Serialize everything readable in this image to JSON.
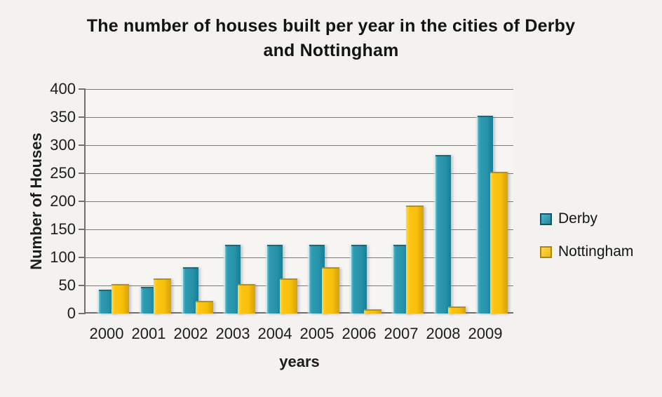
{
  "title": "The number of houses built per year in the cities of Derby and Nottingham",
  "chart_data": {
    "type": "bar",
    "title": "The number of houses built per year in the cities of Derby and Nottingham",
    "categories": [
      "2000",
      "2001",
      "2002",
      "2003",
      "2004",
      "2005",
      "2006",
      "2007",
      "2008",
      "2009"
    ],
    "series": [
      {
        "name": "Derby",
        "color": "#2592aa",
        "values": [
          40,
          45,
          80,
          120,
          120,
          120,
          120,
          120,
          280,
          350
        ]
      },
      {
        "name": "Nottingham",
        "color": "#fdc513",
        "values": [
          50,
          60,
          20,
          50,
          60,
          80,
          5,
          190,
          10,
          250
        ]
      }
    ],
    "xlabel": "years",
    "ylabel": "Number of Houses",
    "ylim": [
      0,
      400
    ],
    "yticks": [
      0,
      50,
      100,
      150,
      200,
      250,
      300,
      350,
      400
    ],
    "grid": true,
    "legend_position": "right"
  },
  "colors": {
    "background": "#f3f2ef",
    "gridline": "#7b7b7b",
    "text": "#1c1c1c",
    "derby": "#2592aa",
    "nottingham": "#fdc513"
  }
}
